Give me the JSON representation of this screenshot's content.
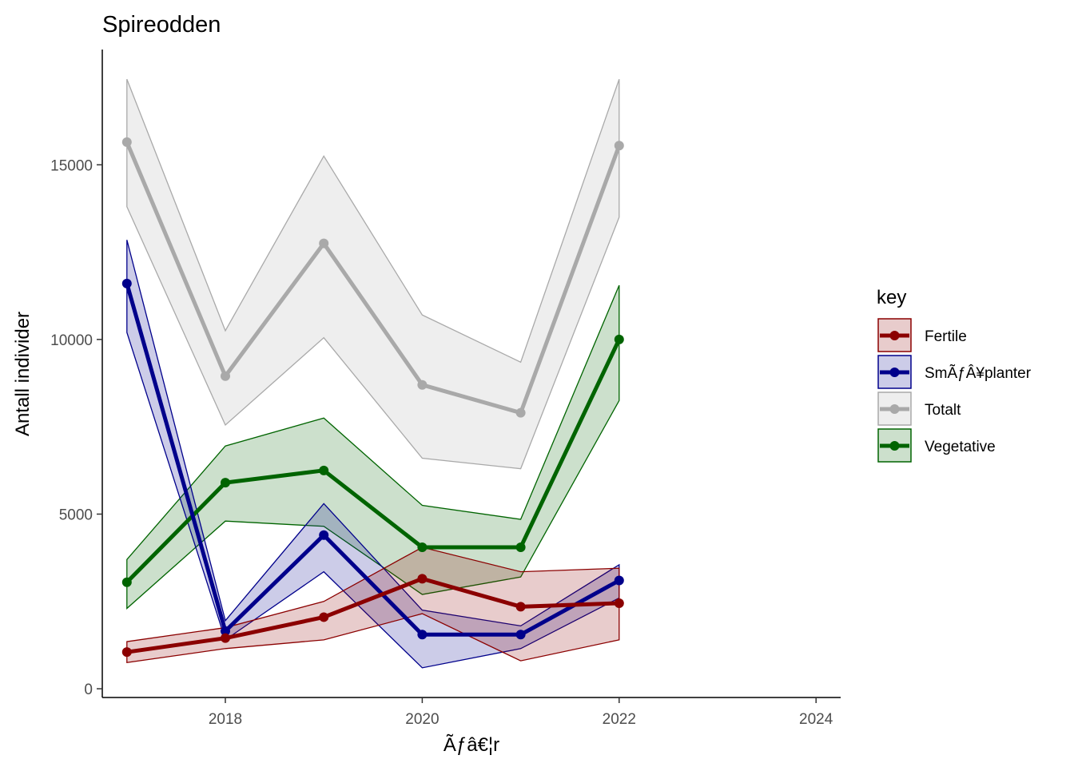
{
  "chart_data": {
    "type": "line",
    "title": "Spireodden",
    "xlabel": "Ãƒâ€¦r",
    "ylabel": "Antall individer",
    "xlim": [
      2016.75,
      2024.25
    ],
    "ylim": [
      -250,
      18300
    ],
    "x_ticks": [
      2018,
      2020,
      2022,
      2024
    ],
    "y_ticks": [
      0,
      5000,
      10000,
      15000
    ],
    "grid": false,
    "legend": {
      "title": "key",
      "placement": "right"
    },
    "x": [
      2017,
      2018,
      2019,
      2020,
      2021,
      2022
    ],
    "series": [
      {
        "name": "Totalt",
        "color": "#A9A9A9",
        "fill": "#A9A9A9",
        "values": [
          15650,
          8950,
          12750,
          8700,
          7900,
          15550
        ],
        "lower": [
          13800,
          7550,
          10050,
          6600,
          6300,
          13500
        ],
        "upper": [
          17450,
          10250,
          15250,
          10700,
          9350,
          17450
        ]
      },
      {
        "name": "Vegetative",
        "color": "#006400",
        "fill": "#006400",
        "values": [
          3050,
          5900,
          6250,
          4050,
          4050,
          10000
        ],
        "lower": [
          2300,
          4800,
          4650,
          2700,
          3200,
          8250
        ],
        "upper": [
          3700,
          6950,
          7750,
          5250,
          4850,
          11550
        ]
      },
      {
        "name": "SmÃƒÂ¥planter",
        "color": "#00008B",
        "fill": "#00008B",
        "values": [
          11600,
          1650,
          4400,
          1550,
          1550,
          3100
        ],
        "lower": [
          10200,
          1400,
          3350,
          600,
          1150,
          2600
        ],
        "upper": [
          12850,
          1950,
          5300,
          2250,
          1800,
          3550
        ]
      },
      {
        "name": "Fertile",
        "color": "#8B0000",
        "fill": "#8B0000",
        "values": [
          1050,
          1450,
          2050,
          3150,
          2350,
          2450
        ],
        "lower": [
          750,
          1150,
          1400,
          2150,
          800,
          1400
        ],
        "upper": [
          1350,
          1750,
          2500,
          4050,
          3350,
          3450
        ]
      }
    ],
    "legend_order": [
      "Fertile",
      "SmÃƒÂ¥planter",
      "Totalt",
      "Vegetative"
    ]
  }
}
